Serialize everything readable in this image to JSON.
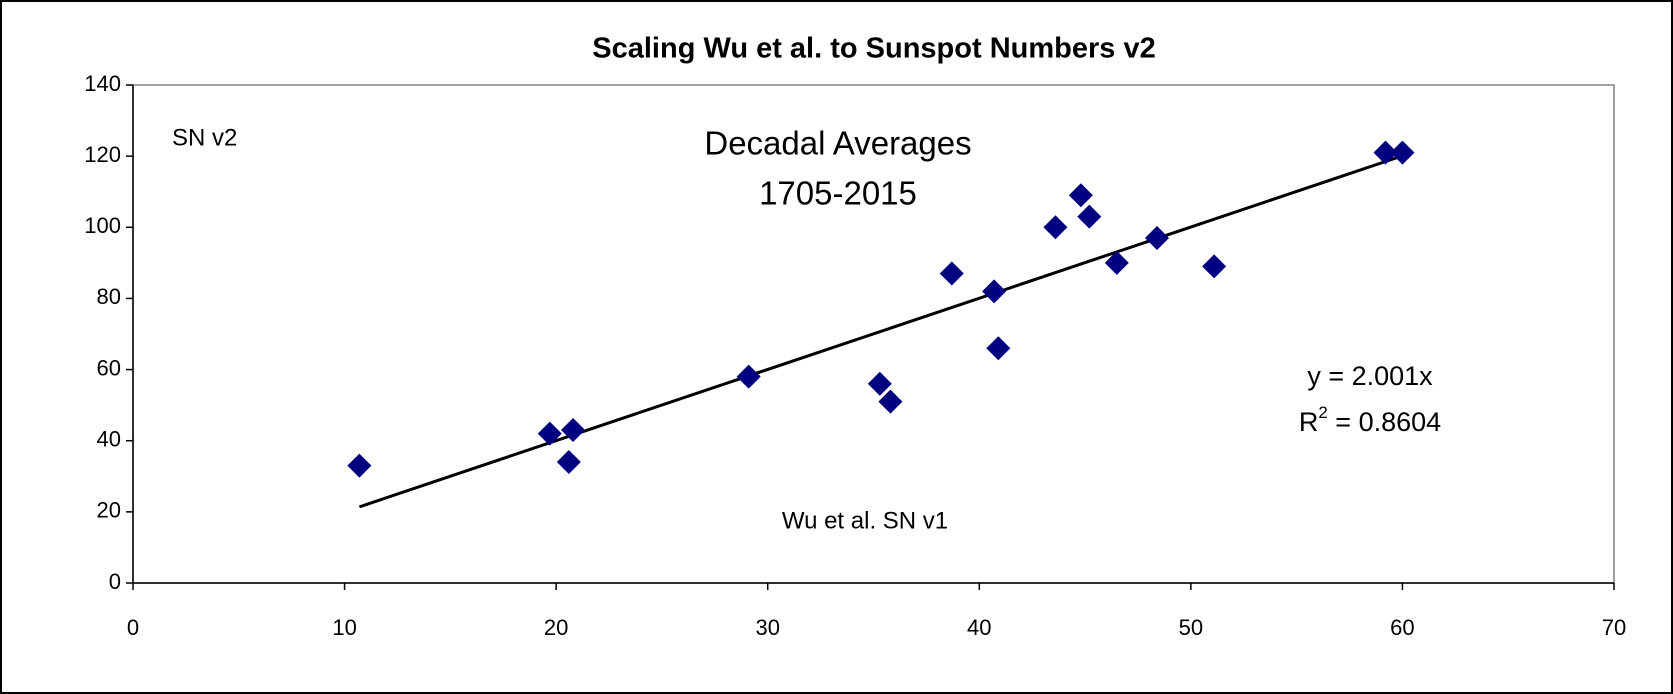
{
  "chart_data": {
    "type": "scatter",
    "title": "Scaling Wu et al. to Sunspot Numbers v2",
    "subtitle": [
      "Decadal Averages",
      "1705-2015"
    ],
    "x_label": "Wu et al. SN v1",
    "y_label": "SN v2",
    "series": [
      {
        "name": "Decadal Averages",
        "color": "#000080",
        "x": [
          10.7,
          19.7,
          20.6,
          20.8,
          29.1,
          35.3,
          35.8,
          38.7,
          40.7,
          40.9,
          43.6,
          44.8,
          45.2,
          46.5,
          48.4,
          51.1,
          59.2,
          60.0
        ],
        "values": [
          33,
          42,
          34,
          43,
          58,
          56,
          51,
          87,
          82,
          66,
          100,
          109,
          103,
          90,
          97,
          89,
          121,
          121
        ]
      }
    ],
    "trendline": {
      "x": [
        10.7,
        60.0
      ],
      "values": [
        21.4,
        120.1
      ],
      "color": "#000000"
    },
    "equation": "y = 2.001x",
    "r_squared": {
      "prefix": "R",
      "sup": "2",
      "rest": " = 0.8604"
    },
    "xlim": [
      0,
      70
    ],
    "xticks": [
      0,
      10,
      20,
      30,
      40,
      50,
      60,
      70
    ],
    "ylim": [
      0,
      140
    ],
    "yticks": [
      0,
      20,
      40,
      60,
      80,
      100,
      120,
      140
    ],
    "grid": false
  }
}
